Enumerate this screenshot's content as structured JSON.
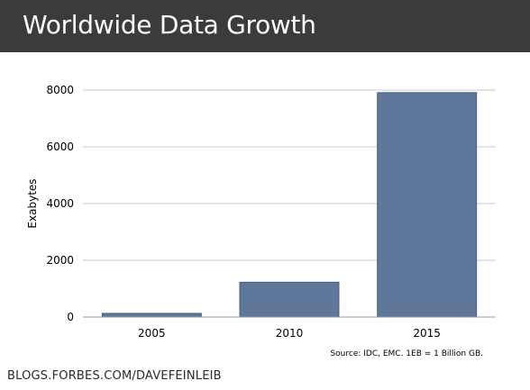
{
  "header": {
    "title": "Worldwide Data Growth"
  },
  "chart_data": {
    "type": "bar",
    "title": "",
    "xlabel": "",
    "ylabel": "Exabytes",
    "categories": [
      "2005",
      "2010",
      "2015"
    ],
    "values": [
      130,
      1227,
      7910
    ],
    "ylim": [
      0,
      8000
    ],
    "yticks": [
      0,
      2000,
      4000,
      6000,
      8000
    ],
    "grid": true,
    "legend": "none",
    "bar_color": "#5f779a",
    "bar_edge_color": "#4a5f80"
  },
  "source_note": "Source: IDC, EMC. 1EB = 1 Billion GB.",
  "footer": {
    "text": "BLOGS.FORBES.COM/DAVEFEINLEIB"
  },
  "colors": {
    "header_bg": "#3b3b3b",
    "grid": "#c8c8c8"
  }
}
